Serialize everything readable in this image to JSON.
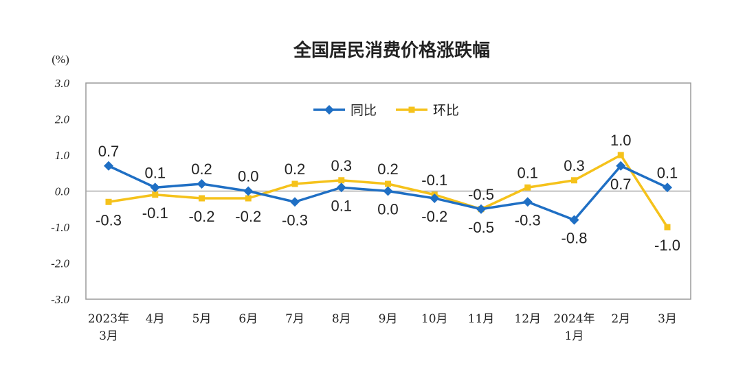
{
  "chart_data": {
    "type": "line",
    "title": "全国居民消费价格涨跌幅",
    "unit_label": "(%)",
    "categories": [
      [
        "2023年",
        "3月"
      ],
      [
        "4月"
      ],
      [
        "5月"
      ],
      [
        "6月"
      ],
      [
        "7月"
      ],
      [
        "8月"
      ],
      [
        "9月"
      ],
      [
        "10月"
      ],
      [
        "11月"
      ],
      [
        "12月"
      ],
      [
        "2024年",
        "1月"
      ],
      [
        "2月"
      ],
      [
        "3月"
      ]
    ],
    "ylim": [
      -3.0,
      3.0
    ],
    "yticks": [
      -3.0,
      -2.0,
      -1.0,
      0.0,
      1.0,
      2.0,
      3.0
    ],
    "ytick_labels": [
      "-3.0",
      "-2.0",
      "-1.0",
      "0.0",
      "1.0",
      "2.0",
      "3.0"
    ],
    "zero_line": true,
    "grid": false,
    "legend_position": "top-center",
    "series": [
      {
        "name": "同比",
        "color": "#1f6fc4",
        "marker": "diamond",
        "values": [
          0.7,
          0.1,
          0.2,
          0.0,
          -0.3,
          0.1,
          0.0,
          -0.2,
          -0.5,
          -0.3,
          -0.8,
          0.7,
          0.1
        ],
        "labels": [
          "0.7",
          "0.1",
          "0.2",
          "0.0",
          "-0.3",
          "0.1",
          "0.0",
          "-0.2",
          "-0.5",
          "-0.3",
          "-0.8",
          "0.7",
          "0.1"
        ]
      },
      {
        "name": "环比",
        "color": "#f5c21b",
        "marker": "square",
        "values": [
          -0.3,
          -0.1,
          -0.2,
          -0.2,
          0.2,
          0.3,
          0.2,
          -0.1,
          -0.5,
          0.1,
          0.3,
          1.0,
          -1.0
        ],
        "labels": [
          "-0.3",
          "-0.1",
          "-0.2",
          "-0.2",
          "0.2",
          "0.3",
          "0.2",
          "-0.1",
          "-0.5",
          "0.1",
          "0.3",
          "1.0",
          "-1.0"
        ]
      }
    ]
  }
}
